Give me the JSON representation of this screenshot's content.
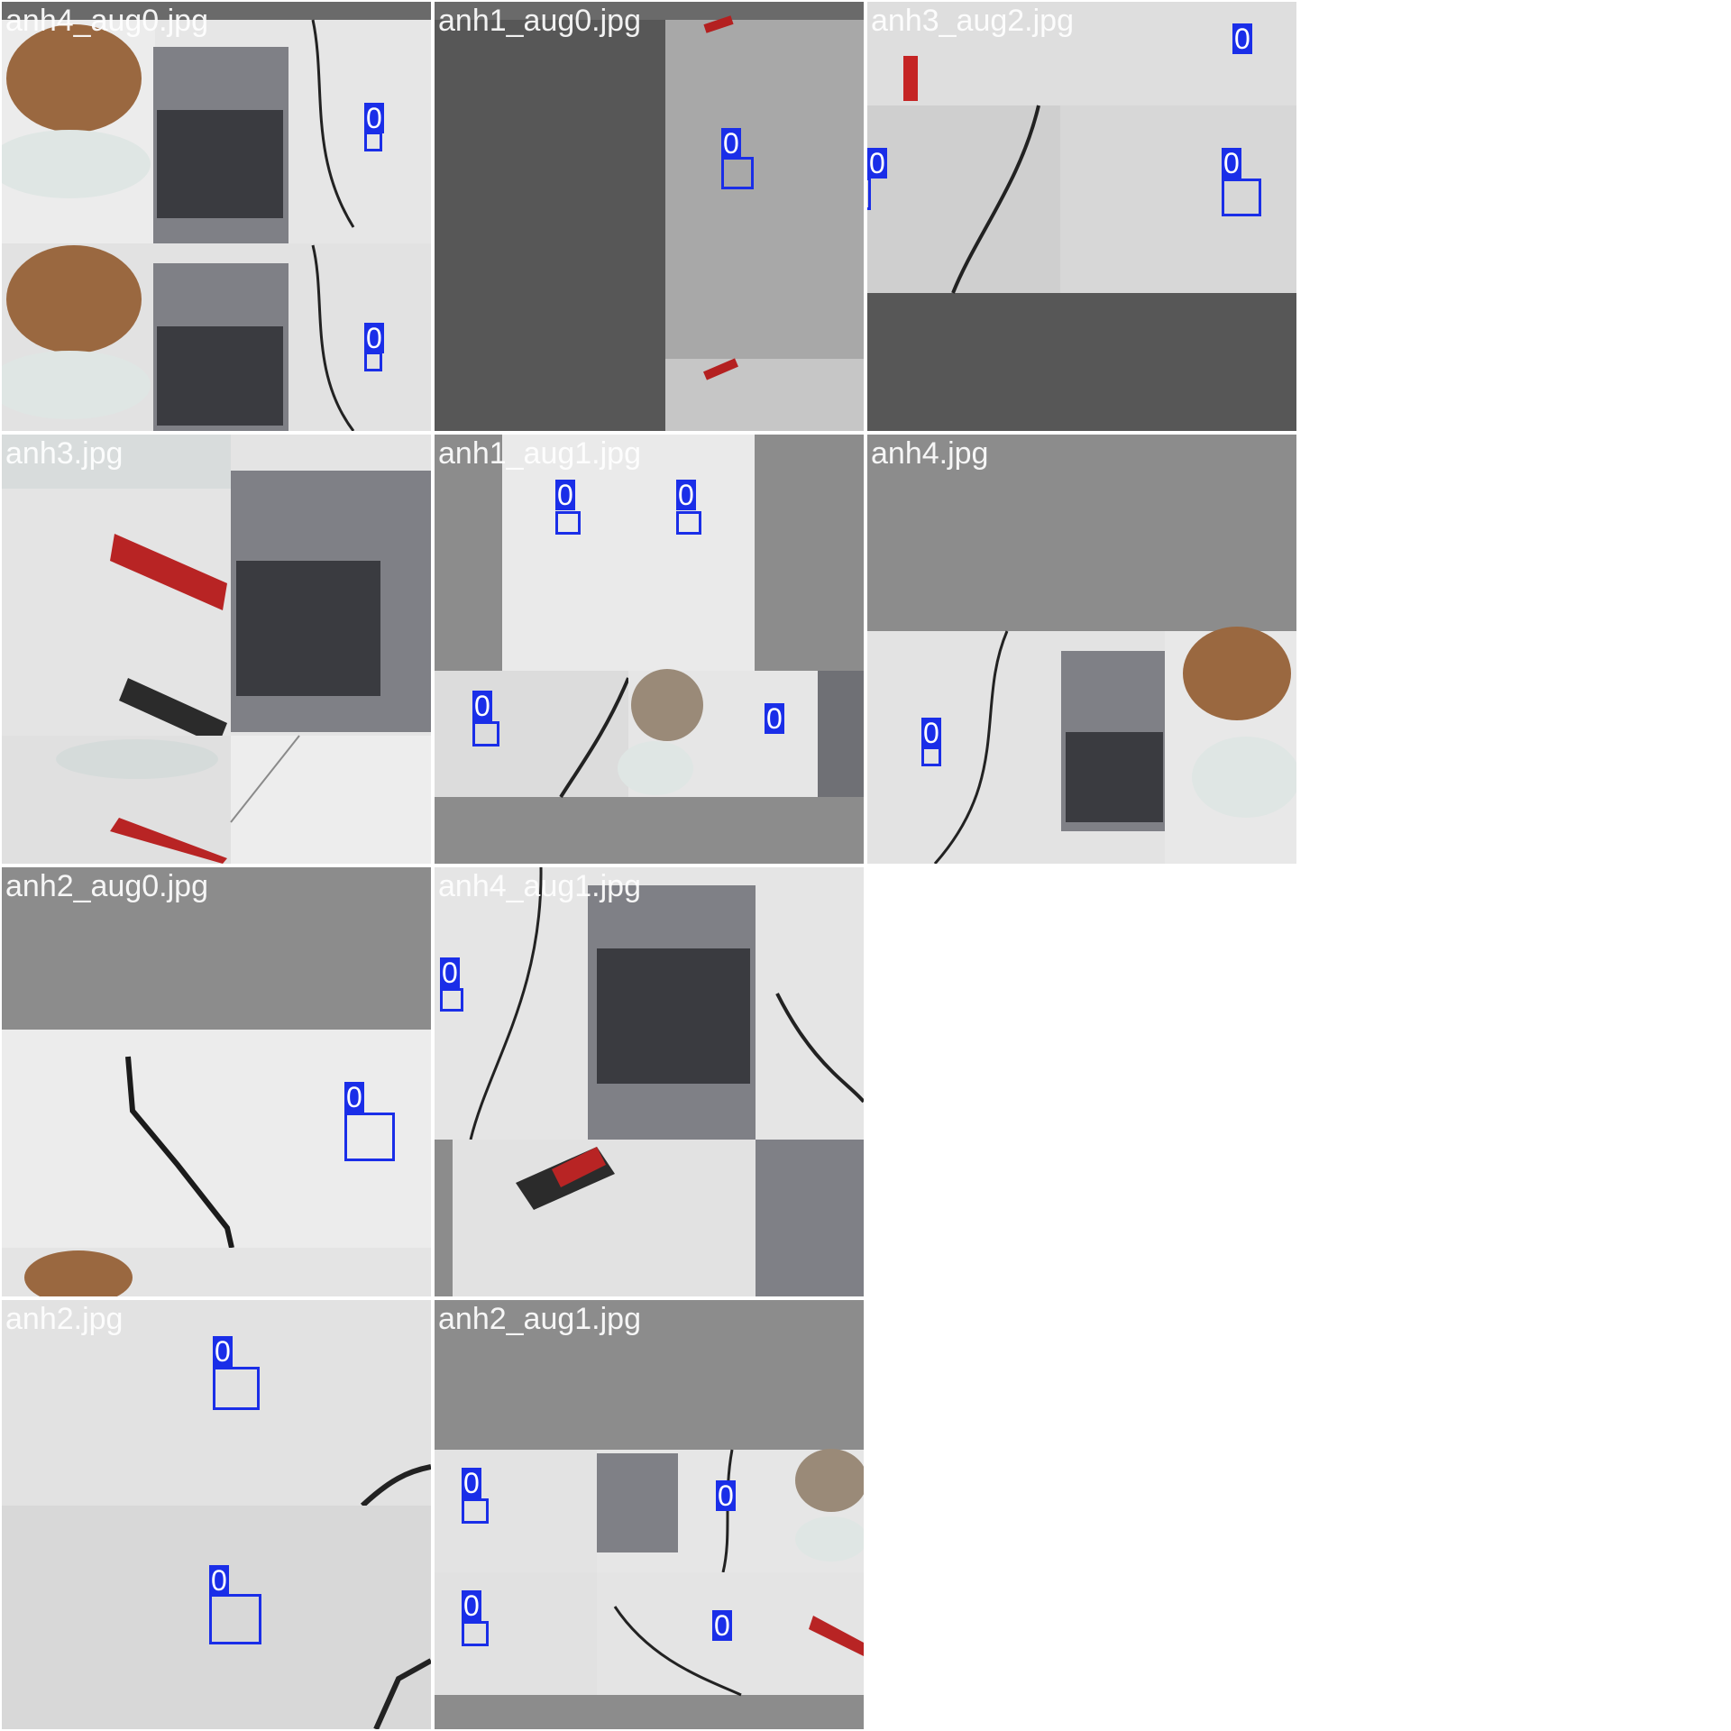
{
  "mosaic": {
    "tiles": [
      {
        "filename": "anh4_aug0.jpg",
        "class_labels": [
          "0",
          "0"
        ]
      },
      {
        "filename": "anh1_aug0.jpg",
        "class_labels": [
          "0"
        ]
      },
      {
        "filename": "anh3_aug2.jpg",
        "class_labels": [
          "0",
          "0",
          "0"
        ]
      },
      {
        "filename": "anh3.jpg",
        "class_labels": []
      },
      {
        "filename": "anh1_aug1.jpg",
        "class_labels": [
          "0",
          "0",
          "0",
          "0"
        ]
      },
      {
        "filename": "anh4.jpg",
        "class_labels": [
          "0"
        ]
      },
      {
        "filename": "anh2_aug0.jpg",
        "class_labels": [
          "0"
        ]
      },
      {
        "filename": "anh4_aug1.jpg",
        "class_labels": [
          "0"
        ]
      },
      {
        "filename": "anh2.jpg",
        "class_labels": [
          "0",
          "0"
        ]
      },
      {
        "filename": "anh2_aug1.jpg",
        "class_labels": [
          "0",
          "0",
          "0",
          "0"
        ]
      }
    ],
    "colors": {
      "box": "#1a2ee8",
      "label_text": "#ffffff",
      "pad": "#8c8c8c",
      "dark_pad": "#555555",
      "surface": "#e9e9e9"
    }
  }
}
